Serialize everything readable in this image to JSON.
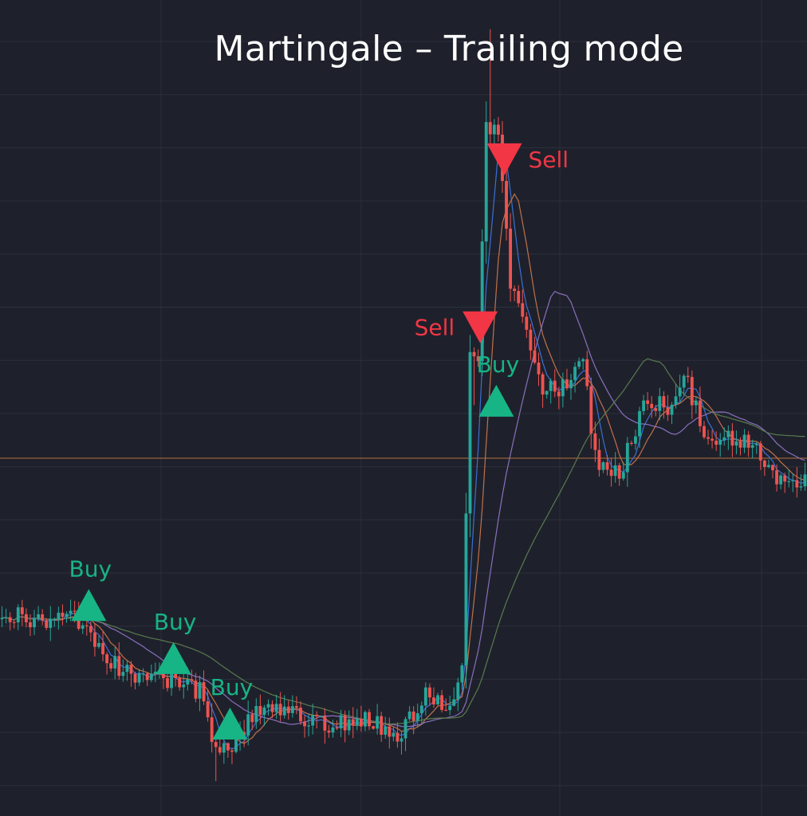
{
  "chart_data": {
    "type": "candlestick",
    "title": "Martingale – Trailing mode",
    "grid": true,
    "colors": {
      "background": "#1e212b",
      "grid": "#2c303d",
      "up": "#26a69a",
      "down": "#ef5350",
      "buy_signal": "#17b486",
      "sell_signal": "#f23645",
      "ma_fast": "#3b6fd6",
      "ma_medium": "#c0704c",
      "ma_slow": "#8a6fbf",
      "ma_long": "#5a7a4f",
      "reference_line": "#b9703d"
    },
    "y_range": [
      0.1,
      1.0
    ],
    "x_range": [
      0,
      200
    ],
    "reference_level": 0.5,
    "control_points": [
      [
        0,
        0.318
      ],
      [
        5,
        0.322
      ],
      [
        10,
        0.315
      ],
      [
        17,
        0.32
      ],
      [
        22,
        0.312
      ],
      [
        28,
        0.268
      ],
      [
        36,
        0.252
      ],
      [
        43,
        0.25
      ],
      [
        50,
        0.236
      ],
      [
        54,
        0.17
      ],
      [
        58,
        0.175
      ],
      [
        63,
        0.208
      ],
      [
        68,
        0.22
      ],
      [
        76,
        0.208
      ],
      [
        84,
        0.198
      ],
      [
        92,
        0.205
      ],
      [
        99,
        0.188
      ],
      [
        106,
        0.23
      ],
      [
        112,
        0.215
      ],
      [
        115,
        0.255
      ],
      [
        117,
        0.62
      ],
      [
        119,
        0.61
      ],
      [
        121,
        0.88
      ],
      [
        124,
        0.86
      ],
      [
        127,
        0.7
      ],
      [
        131,
        0.65
      ],
      [
        135,
        0.58
      ],
      [
        141,
        0.58
      ],
      [
        145,
        0.61
      ],
      [
        148,
        0.5
      ],
      [
        154,
        0.48
      ],
      [
        160,
        0.56
      ],
      [
        166,
        0.56
      ],
      [
        170,
        0.595
      ],
      [
        176,
        0.515
      ],
      [
        182,
        0.522
      ],
      [
        188,
        0.518
      ],
      [
        193,
        0.47
      ],
      [
        196,
        0.475
      ],
      [
        200,
        0.48
      ]
    ],
    "signals": [
      {
        "type": "buy",
        "label": "Buy",
        "x": 22,
        "price": 0.334
      },
      {
        "type": "buy",
        "label": "Buy",
        "x": 43,
        "price": 0.274
      },
      {
        "type": "buy",
        "label": "Buy",
        "x": 57,
        "price": 0.2
      },
      {
        "type": "sell",
        "label": "Sell",
        "x": 119,
        "price": 0.648
      },
      {
        "type": "buy",
        "label": "Buy",
        "x": 123,
        "price": 0.565
      },
      {
        "type": "sell",
        "label": "Sell",
        "x": 125,
        "price": 0.838
      }
    ]
  }
}
